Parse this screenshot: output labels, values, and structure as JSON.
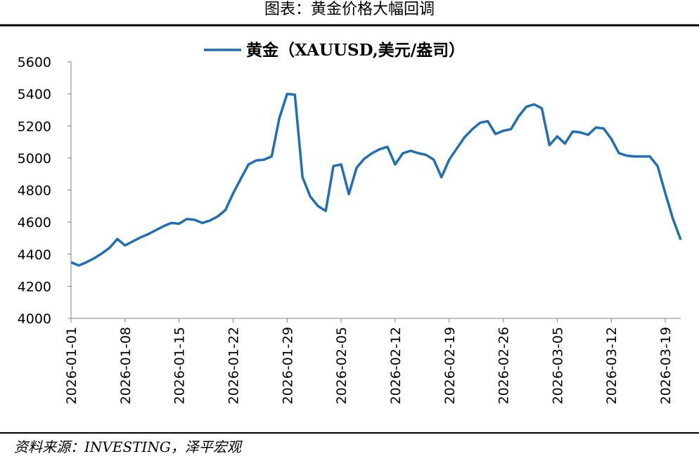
{
  "chart_data": {
    "type": "line",
    "title": "图表：黄金价格大幅回调",
    "source": "资料来源：INVESTING，泽平宏观",
    "x": [
      "2026-01-01",
      "2026-01-02",
      "2026-01-03",
      "2026-01-04",
      "2026-01-05",
      "2026-01-06",
      "2026-01-07",
      "2026-01-08",
      "2026-01-09",
      "2026-01-10",
      "2026-01-11",
      "2026-01-12",
      "2026-01-13",
      "2026-01-14",
      "2026-01-15",
      "2026-01-16",
      "2026-01-17",
      "2026-01-18",
      "2026-01-19",
      "2026-01-20",
      "2026-01-21",
      "2026-01-22",
      "2026-01-23",
      "2026-01-24",
      "2026-01-25",
      "2026-01-26",
      "2026-01-27",
      "2026-01-28",
      "2026-01-29",
      "2026-01-30",
      "2026-01-31",
      "2026-02-01",
      "2026-02-02",
      "2026-02-03",
      "2026-02-04",
      "2026-02-05",
      "2026-02-06",
      "2026-02-07",
      "2026-02-08",
      "2026-02-09",
      "2026-02-10",
      "2026-02-11",
      "2026-02-12",
      "2026-02-13",
      "2026-02-14",
      "2026-02-15",
      "2026-02-16",
      "2026-02-17",
      "2026-02-18",
      "2026-02-19",
      "2026-02-20",
      "2026-02-21",
      "2026-02-22",
      "2026-02-23",
      "2026-02-24",
      "2026-02-25",
      "2026-02-26",
      "2026-02-27",
      "2026-02-28",
      "2026-03-01",
      "2026-03-02",
      "2026-03-03",
      "2026-03-04",
      "2026-03-05",
      "2026-03-06",
      "2026-03-07",
      "2026-03-08",
      "2026-03-09",
      "2026-03-10",
      "2026-03-11",
      "2026-03-12",
      "2026-03-13",
      "2026-03-14",
      "2026-03-15",
      "2026-03-16",
      "2026-03-17",
      "2026-03-18",
      "2026-03-19",
      "2026-03-20",
      "2026-03-21"
    ],
    "series": [
      {
        "name": "黄金（XAUUSD,美元/盎司）",
        "color": "#1f6fb2",
        "values": [
          4350,
          4330,
          4350,
          4375,
          4405,
          4440,
          4495,
          4455,
          4480,
          4505,
          4525,
          4550,
          4575,
          4595,
          4590,
          4620,
          4615,
          4595,
          4610,
          4635,
          4675,
          4780,
          4870,
          4960,
          4985,
          4990,
          5010,
          5250,
          5400,
          5395,
          4880,
          4760,
          4700,
          4670,
          4950,
          4960,
          4775,
          4940,
          4995,
          5030,
          5055,
          5070,
          4960,
          5030,
          5045,
          5030,
          5020,
          4990,
          4880,
          4990,
          5060,
          5130,
          5180,
          5220,
          5230,
          5150,
          5170,
          5180,
          5260,
          5320,
          5335,
          5310,
          5080,
          5135,
          5090,
          5165,
          5160,
          5145,
          5190,
          5185,
          5120,
          5030,
          5015,
          5010,
          5010,
          5010,
          4950,
          4780,
          4620,
          4490
        ]
      }
    ],
    "xlim": [
      "2026-01-01",
      "2026-03-21"
    ],
    "xticks": [
      "2026-01-01",
      "2026-01-08",
      "2026-01-15",
      "2026-01-22",
      "2026-01-29",
      "2026-02-05",
      "2026-02-12",
      "2026-02-19",
      "2026-02-26",
      "2026-03-05",
      "2026-03-12",
      "2026-03-19"
    ],
    "ylim": [
      4000,
      5600
    ],
    "yticks": [
      4000,
      4200,
      4400,
      4600,
      4800,
      5000,
      5200,
      5400,
      5600
    ],
    "grid": false,
    "legend": "top"
  }
}
